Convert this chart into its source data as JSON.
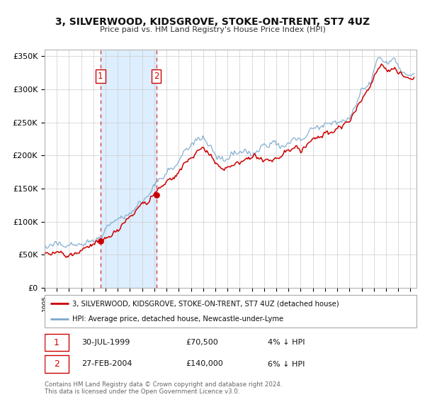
{
  "title": "3, SILVERWOOD, KIDSGROVE, STOKE-ON-TRENT, ST7 4UZ",
  "subtitle": "Price paid vs. HM Land Registry's House Price Index (HPI)",
  "ylim": [
    0,
    360000
  ],
  "yticks": [
    0,
    50000,
    100000,
    150000,
    200000,
    250000,
    300000,
    350000
  ],
  "ytick_labels": [
    "£0",
    "£50K",
    "£100K",
    "£150K",
    "£200K",
    "£250K",
    "£300K",
    "£350K"
  ],
  "xlim_start": 1995.0,
  "xlim_end": 2025.5,
  "background_color": "#ffffff",
  "plot_bg_color": "#ffffff",
  "grid_color": "#cccccc",
  "legend_label_red": "3, SILVERWOOD, KIDSGROVE, STOKE-ON-TRENT, ST7 4UZ (detached house)",
  "legend_label_blue": "HPI: Average price, detached house, Newcastle-under-Lyme",
  "transaction1_date": "30-JUL-1999",
  "transaction1_price": "£70,500",
  "transaction1_hpi": "4% ↓ HPI",
  "transaction1_x": 1999.58,
  "transaction1_y": 70500,
  "transaction2_date": "27-FEB-2004",
  "transaction2_price": "£140,000",
  "transaction2_hpi": "6% ↓ HPI",
  "transaction2_x": 2004.16,
  "transaction2_y": 140000,
  "red_color": "#cc0000",
  "blue_color": "#7aa8cc",
  "shade_color": "#ddeeff",
  "footer_text": "Contains HM Land Registry data © Crown copyright and database right 2024.\nThis data is licensed under the Open Government Licence v3.0."
}
